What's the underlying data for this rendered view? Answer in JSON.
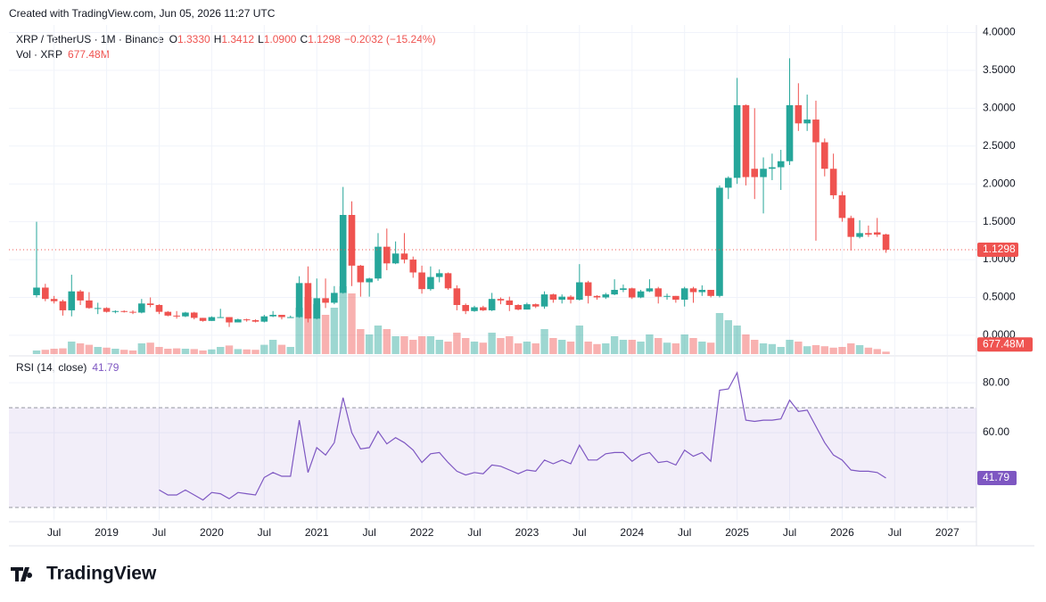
{
  "chart_data": {
    "type": "candlestick",
    "created": "Created with TradingView.com, Jun 05, 2026 11:27 UTC",
    "brand": "TradingView",
    "title": "XRP / TetherUS · 1M · Binance",
    "ohlc_prefixes": [
      "O",
      "H",
      "L",
      "C"
    ],
    "ohlc_labels": [
      "1.3330",
      "1.3412",
      "1.0900",
      "1.1298"
    ],
    "change_label": "−0.2032 (−15.24%)",
    "up_color": "#26a69a",
    "down_color": "#ef5350",
    "x": [
      "2018-05",
      "2018-06",
      "2018-07",
      "2018-08",
      "2018-09",
      "2018-10",
      "2018-11",
      "2018-12",
      "2019-01",
      "2019-02",
      "2019-03",
      "2019-04",
      "2019-05",
      "2019-06",
      "2019-07",
      "2019-08",
      "2019-09",
      "2019-10",
      "2019-11",
      "2019-12",
      "2020-01",
      "2020-02",
      "2020-03",
      "2020-04",
      "2020-05",
      "2020-06",
      "2020-07",
      "2020-08",
      "2020-09",
      "2020-10",
      "2020-11",
      "2020-12",
      "2021-01",
      "2021-02",
      "2021-03",
      "2021-04",
      "2021-05",
      "2021-06",
      "2021-07",
      "2021-08",
      "2021-09",
      "2021-10",
      "2021-11",
      "2021-12",
      "2022-01",
      "2022-02",
      "2022-03",
      "2022-04",
      "2022-05",
      "2022-06",
      "2022-07",
      "2022-08",
      "2022-09",
      "2022-10",
      "2022-11",
      "2022-12",
      "2023-01",
      "2023-02",
      "2023-03",
      "2023-04",
      "2023-05",
      "2023-06",
      "2023-07",
      "2023-08",
      "2023-09",
      "2023-10",
      "2023-11",
      "2023-12",
      "2024-01",
      "2024-02",
      "2024-03",
      "2024-04",
      "2024-05",
      "2024-06",
      "2024-07",
      "2024-08",
      "2024-09",
      "2024-10",
      "2024-11",
      "2024-12",
      "2025-01",
      "2025-02",
      "2025-03",
      "2025-04",
      "2025-05",
      "2025-06",
      "2025-07",
      "2025-08",
      "2025-09",
      "2025-10",
      "2025-11",
      "2025-12",
      "2026-01",
      "2026-02",
      "2026-03",
      "2026-04",
      "2026-05",
      "2026-06"
    ],
    "open": [
      0.53,
      0.63,
      0.48,
      0.45,
      0.33,
      0.58,
      0.46,
      0.36,
      0.36,
      0.31,
      0.32,
      0.31,
      0.3,
      0.42,
      0.4,
      0.31,
      0.26,
      0.25,
      0.3,
      0.23,
      0.19,
      0.24,
      0.24,
      0.17,
      0.21,
      0.2,
      0.18,
      0.25,
      0.27,
      0.24,
      0.24,
      0.69,
      0.22,
      0.49,
      0.43,
      0.56,
      1.59,
      0.92,
      0.7,
      0.75,
      1.17,
      0.95,
      1.08,
      1.0,
      0.83,
      0.61,
      0.77,
      0.82,
      0.62,
      0.4,
      0.32,
      0.37,
      0.33,
      0.48,
      0.46,
      0.4,
      0.34,
      0.41,
      0.38,
      0.54,
      0.47,
      0.51,
      0.47,
      0.7,
      0.52,
      0.5,
      0.54,
      0.6,
      0.62,
      0.5,
      0.58,
      0.62,
      0.51,
      0.52,
      0.47,
      0.62,
      0.57,
      0.6,
      0.52,
      1.95,
      2.08,
      3.04,
      2.2,
      2.09,
      2.2,
      2.22,
      2.3,
      3.04,
      2.8,
      2.85,
      2.55,
      2.2,
      1.85,
      1.55,
      1.3,
      1.35,
      1.36,
      1.333
    ],
    "high": [
      1.5,
      0.68,
      0.52,
      0.47,
      0.8,
      0.6,
      0.57,
      0.43,
      0.37,
      0.33,
      0.33,
      0.33,
      0.48,
      0.5,
      0.41,
      0.32,
      0.32,
      0.31,
      0.31,
      0.23,
      0.25,
      0.35,
      0.24,
      0.22,
      0.22,
      0.21,
      0.27,
      0.32,
      0.27,
      0.26,
      0.78,
      0.91,
      0.75,
      0.75,
      0.65,
      1.96,
      1.77,
      0.93,
      0.76,
      1.35,
      1.41,
      1.24,
      1.35,
      1.04,
      0.92,
      0.91,
      0.87,
      0.83,
      0.66,
      0.42,
      0.39,
      0.39,
      0.56,
      0.5,
      0.51,
      0.41,
      0.43,
      0.42,
      0.58,
      0.55,
      0.54,
      0.53,
      0.94,
      0.72,
      0.53,
      0.56,
      0.74,
      0.67,
      0.63,
      0.6,
      0.74,
      0.64,
      0.55,
      0.52,
      0.64,
      0.64,
      0.66,
      0.6,
      1.98,
      2.1,
      3.4,
      3.05,
      3.0,
      2.35,
      2.4,
      2.45,
      3.66,
      3.33,
      3.18,
      3.1,
      2.6,
      2.4,
      1.9,
      1.58,
      1.52,
      1.45,
      1.55,
      1.3412
    ],
    "low": [
      0.5,
      0.45,
      0.42,
      0.26,
      0.25,
      0.4,
      0.35,
      0.28,
      0.3,
      0.29,
      0.3,
      0.28,
      0.29,
      0.37,
      0.28,
      0.25,
      0.22,
      0.24,
      0.21,
      0.18,
      0.19,
      0.23,
      0.11,
      0.17,
      0.18,
      0.17,
      0.17,
      0.24,
      0.21,
      0.23,
      0.23,
      0.17,
      0.21,
      0.36,
      0.41,
      0.55,
      0.65,
      0.51,
      0.51,
      0.72,
      0.86,
      0.94,
      0.95,
      0.76,
      0.55,
      0.59,
      0.7,
      0.6,
      0.33,
      0.28,
      0.31,
      0.32,
      0.32,
      0.41,
      0.32,
      0.33,
      0.34,
      0.36,
      0.35,
      0.43,
      0.42,
      0.42,
      0.46,
      0.42,
      0.47,
      0.48,
      0.53,
      0.57,
      0.48,
      0.49,
      0.57,
      0.42,
      0.47,
      0.43,
      0.38,
      0.43,
      0.52,
      0.5,
      0.5,
      1.8,
      2.0,
      1.98,
      1.8,
      1.61,
      2.05,
      1.92,
      2.25,
      2.7,
      2.7,
      1.25,
      2.1,
      1.8,
      1.5,
      1.12,
      1.28,
      1.3,
      1.3,
      1.09
    ],
    "close": [
      0.63,
      0.48,
      0.45,
      0.33,
      0.58,
      0.46,
      0.36,
      0.36,
      0.31,
      0.32,
      0.31,
      0.3,
      0.42,
      0.4,
      0.31,
      0.26,
      0.25,
      0.3,
      0.23,
      0.19,
      0.24,
      0.24,
      0.17,
      0.21,
      0.2,
      0.18,
      0.25,
      0.27,
      0.24,
      0.24,
      0.69,
      0.22,
      0.49,
      0.43,
      0.56,
      1.59,
      0.92,
      0.7,
      0.75,
      1.17,
      0.95,
      1.08,
      1.0,
      0.83,
      0.61,
      0.77,
      0.82,
      0.62,
      0.4,
      0.32,
      0.37,
      0.33,
      0.48,
      0.46,
      0.4,
      0.34,
      0.41,
      0.38,
      0.54,
      0.47,
      0.51,
      0.47,
      0.7,
      0.52,
      0.5,
      0.54,
      0.6,
      0.62,
      0.5,
      0.58,
      0.62,
      0.51,
      0.52,
      0.47,
      0.62,
      0.57,
      0.6,
      0.52,
      1.95,
      2.08,
      3.04,
      2.09,
      2.09,
      2.2,
      2.22,
      2.3,
      3.04,
      2.8,
      2.85,
      2.55,
      2.2,
      1.85,
      1.55,
      1.3,
      1.35,
      1.33,
      1.33,
      1.1298
    ],
    "ylim": [
      -0.26,
      4.1
    ],
    "yticks": [
      {
        "value": 0,
        "label": "0.0000"
      },
      {
        "value": 0.5,
        "label": "0.5000"
      },
      {
        "value": 1,
        "label": "1.0000"
      },
      {
        "value": 1.5,
        "label": "1.5000"
      },
      {
        "value": 2,
        "label": "2.0000"
      },
      {
        "value": 2.5,
        "label": "2.5000"
      },
      {
        "value": 3,
        "label": "3.0000"
      },
      {
        "value": 3.5,
        "label": "3.5000"
      },
      {
        "value": 4,
        "label": "4.0000"
      }
    ],
    "xticks": [
      {
        "value": "2018-07",
        "label": "Jul"
      },
      {
        "value": "2019-01",
        "label": "2019"
      },
      {
        "value": "2019-07",
        "label": "Jul"
      },
      {
        "value": "2020-01",
        "label": "2020"
      },
      {
        "value": "2020-07",
        "label": "Jul"
      },
      {
        "value": "2021-01",
        "label": "2021"
      },
      {
        "value": "2021-07",
        "label": "Jul"
      },
      {
        "value": "2022-01",
        "label": "2022"
      },
      {
        "value": "2022-07",
        "label": "Jul"
      },
      {
        "value": "2023-01",
        "label": "2023"
      },
      {
        "value": "2023-07",
        "label": "Jul"
      },
      {
        "value": "2024-01",
        "label": "2024"
      },
      {
        "value": "2024-07",
        "label": "Jul"
      },
      {
        "value": "2025-01",
        "label": "2025"
      },
      {
        "value": "2025-07",
        "label": "Jul"
      },
      {
        "value": "2026-01",
        "label": "2026"
      },
      {
        "value": "2026-07",
        "label": "Jul"
      },
      {
        "value": "2027-01",
        "label": "2027"
      }
    ],
    "grid": true,
    "volume": {
      "name": "Vol · XRP",
      "last_label": "677.48M",
      "ylim": [
        0,
        20000
      ],
      "values": [
        1000,
        1200,
        1500,
        1600,
        3500,
        3000,
        2600,
        2000,
        1800,
        1500,
        1200,
        1000,
        3000,
        3200,
        2000,
        1500,
        1600,
        1500,
        1400,
        1000,
        1300,
        2000,
        2400,
        1400,
        1300,
        1200,
        2600,
        4000,
        2600,
        2000,
        13000,
        16000,
        14000,
        11000,
        13000,
        19000,
        17000,
        7000,
        5500,
        8000,
        7000,
        5000,
        5000,
        4000,
        5000,
        5000,
        4000,
        3500,
        6000,
        4500,
        3500,
        3200,
        6000,
        4500,
        5000,
        3000,
        3500,
        3000,
        7000,
        4500,
        4000,
        3500,
        8000,
        3500,
        2800,
        3000,
        5000,
        4000,
        4000,
        3500,
        5500,
        4500,
        3200,
        3000,
        5500,
        4500,
        3500,
        3200,
        11500,
        9500,
        8000,
        5500,
        4000,
        3000,
        2800,
        2000,
        4000,
        3500,
        2200,
        2500,
        2200,
        1800,
        2000,
        3000,
        2500,
        1800,
        1400,
        677.48
      ]
    },
    "rsi": {
      "name": "RSI (14, close)",
      "last_label": "41.79",
      "color": "#7e57c2",
      "ylim": [
        25,
        90.4
      ],
      "band": [
        30,
        70
      ],
      "yticks": [
        {
          "value": 80,
          "label": "80.00"
        },
        {
          "value": 60,
          "label": "60.00"
        }
      ],
      "values": [
        null,
        null,
        null,
        null,
        null,
        null,
        null,
        null,
        null,
        null,
        null,
        null,
        null,
        null,
        37,
        35,
        35,
        37,
        35,
        33,
        36,
        35.5,
        33.5,
        36,
        35.5,
        35,
        42,
        44,
        42.5,
        42.5,
        65,
        44,
        54,
        51,
        56,
        74,
        60,
        53.5,
        54,
        60.5,
        55.5,
        58,
        56,
        53,
        48,
        51.5,
        52,
        48,
        44.5,
        43,
        44,
        43.5,
        47,
        46.5,
        45,
        43.5,
        45,
        44.5,
        49,
        47.5,
        49,
        47.5,
        55,
        49,
        49,
        51.5,
        52,
        52,
        48.5,
        51,
        52,
        48,
        48.5,
        47,
        53,
        50.5,
        52,
        48.5,
        77,
        77.5,
        84,
        65,
        64.5,
        65,
        65,
        65.5,
        73,
        68.5,
        69,
        62.5,
        56,
        51,
        49,
        45,
        44.5,
        44.5,
        44,
        41.79
      ]
    }
  }
}
